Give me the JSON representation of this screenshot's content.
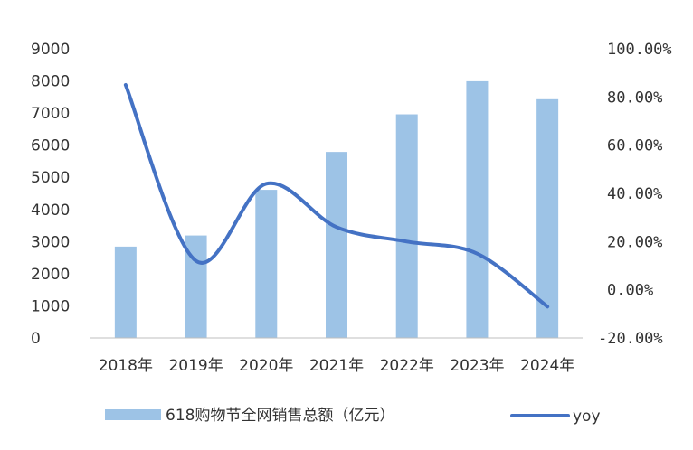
{
  "chart_data": {
    "type": "bar",
    "categories": [
      "2018年",
      "2019年",
      "2020年",
      "2021年",
      "2022年",
      "2023年",
      "2024年"
    ],
    "series": [
      {
        "name": "618购物节全网销售总额（亿元）",
        "type": "bar",
        "axis": "left",
        "color": "#9dc3e6",
        "values": [
          2844,
          3190,
          4610,
          5790,
          6960,
          7990,
          7430
        ]
      },
      {
        "name": "yoy",
        "type": "line",
        "axis": "right",
        "color": "#4472c4",
        "values": [
          0.85,
          0.12,
          0.44,
          0.26,
          0.2,
          0.15,
          -0.07
        ]
      }
    ],
    "y_left": {
      "ylim": [
        0,
        9000
      ],
      "ticks": [
        0,
        1000,
        2000,
        3000,
        4000,
        5000,
        6000,
        7000,
        8000,
        9000
      ],
      "tick_labels": [
        "0",
        "1000",
        "2000",
        "3000",
        "4000",
        "5000",
        "6000",
        "7000",
        "8000",
        "9000"
      ]
    },
    "y_right": {
      "ylim": [
        -0.2,
        1.0
      ],
      "ticks": [
        -0.2,
        0.0,
        0.2,
        0.4,
        0.6,
        0.8,
        1.0
      ],
      "tick_labels": [
        "-20.00%",
        "0.00%",
        "20.00%",
        "40.00%",
        "60.00%",
        "80.00%",
        "100.00%"
      ]
    },
    "grid": false,
    "legend_position": "bottom",
    "legend": [
      "618购物节全网销售总额（亿元）",
      "yoy"
    ]
  }
}
